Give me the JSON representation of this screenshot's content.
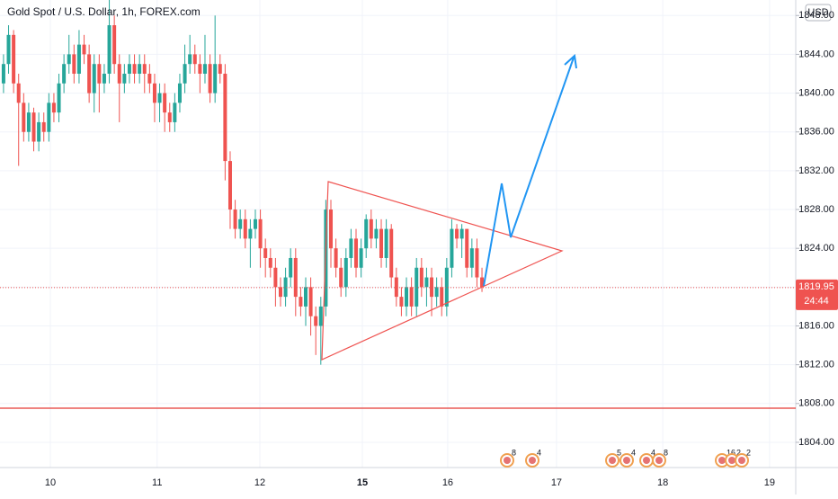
{
  "chart_data": {
    "type": "candlestick",
    "title": "Gold Spot / U.S. Dollar, 1h, FOREX.com",
    "currency": "USD",
    "up_color": "#26a69a",
    "down_color": "#ef5350",
    "open": [
      1841,
      1843,
      1846,
      1841,
      1839,
      1836,
      1838,
      1835,
      1837,
      1836,
      1839,
      1838,
      1841,
      1843,
      1844,
      1842,
      1845,
      1844,
      1840,
      1843,
      1841,
      1842,
      1847,
      1843,
      1841,
      1842,
      1843,
      1842,
      1843,
      1842,
      1841,
      1839,
      1840,
      1838,
      1837,
      1839,
      1841,
      1843,
      1844,
      1843,
      1842,
      1843,
      1840,
      1843,
      1842,
      1833,
      1828,
      1826,
      1827,
      1825,
      1826,
      1827,
      1824,
      1823,
      1822,
      1820,
      1819,
      1821,
      1823,
      1819,
      1818,
      1820,
      1817,
      1816,
      1818,
      1828,
      1824,
      1822,
      1820,
      1823,
      1825,
      1822,
      1824,
      1827,
      1825,
      1826,
      1823,
      1826,
      1821,
      1819,
      1818,
      1820,
      1818,
      1822,
      1820,
      1821,
      1819,
      1820,
      1818,
      1822,
      1826,
      1825,
      1826,
      1822,
      1824,
      1821
    ],
    "high": [
      1844,
      1847,
      1846.5,
      1842,
      1840,
      1839,
      1838.5,
      1838,
      1838,
      1840,
      1840,
      1842,
      1844,
      1846,
      1845,
      1846.5,
      1846,
      1845,
      1844,
      1844,
      1843,
      1851,
      1848,
      1844,
      1843,
      1844,
      1844,
      1844,
      1844,
      1843,
      1842,
      1841,
      1841,
      1839,
      1840,
      1842,
      1845,
      1846,
      1845,
      1844,
      1846,
      1844,
      1848,
      1844,
      1843,
      1834,
      1829,
      1828,
      1828,
      1827,
      1828,
      1828,
      1825,
      1824,
      1823,
      1821,
      1822,
      1824,
      1824,
      1820,
      1821,
      1821,
      1818,
      1819,
      1829,
      1829,
      1825,
      1823,
      1824,
      1826,
      1826,
      1825,
      1827.5,
      1828,
      1827,
      1827,
      1827,
      1826.5,
      1822,
      1820,
      1821,
      1821,
      1823,
      1823,
      1822,
      1822,
      1821,
      1821,
      1823,
      1827,
      1826.5,
      1826.5,
      1826,
      1825,
      1825,
      1822
    ],
    "low": [
      1840,
      1842,
      1840,
      1832.5,
      1835,
      1835,
      1834,
      1834,
      1835,
      1835,
      1837,
      1837,
      1840,
      1842,
      1841,
      1841,
      1843,
      1839,
      1838,
      1838,
      1840,
      1841,
      1842,
      1837,
      1840,
      1841,
      1841,
      1841,
      1840,
      1840,
      1837,
      1837,
      1836,
      1836,
      1836,
      1838,
      1840,
      1842,
      1842,
      1840,
      1841,
      1839,
      1839,
      1841,
      1831,
      1826,
      1825,
      1825,
      1824,
      1822,
      1825,
      1822,
      1821,
      1821,
      1818,
      1818,
      1818,
      1820,
      1817,
      1817,
      1816,
      1815,
      1813,
      1812,
      1817,
      1822,
      1821,
      1819,
      1819,
      1822,
      1821,
      1821,
      1823,
      1824,
      1824,
      1822,
      1822,
      1820,
      1818,
      1817,
      1817,
      1817,
      1817,
      1819,
      1818,
      1817,
      1818,
      1817,
      1817,
      1821,
      1824,
      1823,
      1821,
      1821,
      1820,
      1819.5
    ],
    "close": [
      1843,
      1846,
      1841,
      1839,
      1836,
      1838,
      1835,
      1837,
      1836,
      1839,
      1838,
      1841,
      1843,
      1844,
      1842,
      1845,
      1844,
      1840,
      1843,
      1841,
      1842,
      1847,
      1843,
      1841,
      1842,
      1843,
      1842,
      1843,
      1842,
      1841,
      1839,
      1840,
      1838,
      1837,
      1839,
      1841,
      1843,
      1844,
      1843,
      1842,
      1843,
      1840,
      1843,
      1842,
      1833,
      1828,
      1826,
      1827,
      1825,
      1826,
      1827,
      1824,
      1823,
      1822,
      1820,
      1819,
      1821,
      1823,
      1819,
      1818,
      1820,
      1817,
      1816,
      1818,
      1828,
      1824,
      1822,
      1820,
      1823,
      1825,
      1822,
      1824,
      1827,
      1825,
      1826,
      1823,
      1826,
      1821,
      1819,
      1818,
      1820,
      1818,
      1822,
      1820,
      1821,
      1819,
      1820,
      1818,
      1822,
      1826,
      1825,
      1826,
      1822,
      1824,
      1821,
      1820
    ],
    "xlim": [
      -0.7,
      157.3
    ],
    "xticks": [
      {
        "value": 9.3,
        "label": "10"
      },
      {
        "value": 30.5,
        "label": "11"
      },
      {
        "value": 50.9,
        "label": "12"
      },
      {
        "value": 71.25,
        "label": "15"
      },
      {
        "value": 88.2,
        "label": "16"
      },
      {
        "value": 109.8,
        "label": "17"
      },
      {
        "value": 130.9,
        "label": "18"
      },
      {
        "value": 152.1,
        "label": "19"
      }
    ],
    "ylim": [
      1801.4,
      1849.6
    ],
    "yticks": [
      {
        "value": 1804,
        "label": "1804.00"
      },
      {
        "value": 1808,
        "label": "1808.00"
      },
      {
        "value": 1812,
        "label": "1812.00"
      },
      {
        "value": 1816,
        "label": "1816.00"
      },
      {
        "value": 1820,
        "label": "1820.00"
      },
      {
        "value": 1824,
        "label": "1824.00"
      },
      {
        "value": 1828,
        "label": "1828.00"
      },
      {
        "value": 1832,
        "label": "1832.00"
      },
      {
        "value": 1836,
        "label": "1836.00"
      },
      {
        "value": 1840,
        "label": "1840.00"
      },
      {
        "value": 1844,
        "label": "1844.00"
      },
      {
        "value": 1848,
        "label": "1848.00"
      }
    ],
    "current_price": {
      "value": 1819.95,
      "label": "1819.95"
    },
    "countdown": "24:44",
    "events": [
      "8",
      "4",
      "5",
      "4",
      "4",
      "8",
      "16",
      "2",
      "2"
    ]
  }
}
